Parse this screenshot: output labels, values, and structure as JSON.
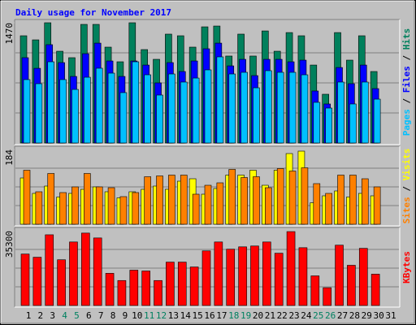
{
  "chart_data": [
    {
      "type": "bar",
      "title": "Daily usage for November 2017",
      "title_color": "#0000ff",
      "legend_separator": " / ",
      "ylim": [
        0,
        1470
      ],
      "yticks": [
        1470
      ],
      "grid_lines": 4,
      "series": [
        {
          "name": "Pages",
          "color": "#00c0ff",
          "values": [
            775,
            725,
            993,
            775,
            655,
            804,
            914,
            854,
            616,
            993,
            834,
            586,
            844,
            745,
            794,
            894,
            1053,
            844,
            864,
            675,
            884,
            864,
            864,
            834,
            497,
            427,
            745,
            477,
            745,
            536,
            null
          ]
        },
        {
          "name": "Files",
          "color": "#0000ff",
          "values": [
            1043,
            913,
            1202,
            983,
            814,
            1092,
            1221,
            1003,
            814,
            1003,
            953,
            735,
            983,
            874,
            1003,
            1152,
            1221,
            943,
            1023,
            824,
            1023,
            1023,
            993,
            1013,
            636,
            477,
            923,
            725,
            953,
            665,
            null
          ]
        },
        {
          "name": "Hits",
          "color": "#00805c",
          "values": [
            1311,
            1261,
            1470,
            1122,
            1043,
            1450,
            1450,
            1172,
            993,
            1470,
            1142,
            1023,
            1331,
            1311,
            1172,
            1420,
            1430,
            1063,
            1331,
            1063,
            1370,
            1122,
            1350,
            1311,
            953,
            596,
            1350,
            1013,
            1311,
            874,
            null
          ]
        }
      ]
    },
    {
      "type": "bar",
      "legend_separator": " / ",
      "ylim": [
        0,
        184
      ],
      "yticks": [
        184
      ],
      "grid_lines": 4,
      "series": [
        {
          "name": "Sites",
          "color": "#ff8000",
          "values": [
            133,
            80,
            125,
            78,
            92,
            125,
            92,
            90,
            68,
            78,
            117,
            119,
            121,
            121,
            74,
            96,
            102,
            135,
            115,
            117,
            90,
            137,
            131,
            139,
            100,
            76,
            121,
            121,
            112,
            92,
            null
          ]
        },
        {
          "name": "Visits",
          "color": "#ffff00",
          "values": [
            114,
            76,
            94,
            67,
            76,
            86,
            92,
            80,
            65,
            80,
            86,
            94,
            86,
            106,
            112,
            74,
            88,
            121,
            121,
            133,
            96,
            133,
            174,
            180,
            53,
            70,
            82,
            67,
            76,
            70,
            null
          ]
        }
      ]
    },
    {
      "type": "bar",
      "ylim": [
        0,
        35300
      ],
      "yticks": [
        35300
      ],
      "grid_lines": 4,
      "categories": [
        "1",
        "2",
        "3",
        "4",
        "5",
        "6",
        "7",
        "8",
        "9",
        "10",
        "11",
        "12",
        "13",
        "14",
        "15",
        "16",
        "17",
        "18",
        "19",
        "20",
        "21",
        "22",
        "23",
        "24",
        "25",
        "26",
        "27",
        "28",
        "29",
        "30",
        "31"
      ],
      "label_colors": [
        "#000000",
        "#000000",
        "#000000",
        "#008060",
        "#008060",
        "#000000",
        "#000000",
        "#000000",
        "#000000",
        "#000000",
        "#008060",
        "#008060",
        "#000000",
        "#000000",
        "#000000",
        "#000000",
        "#000000",
        "#008060",
        "#008060",
        "#000000",
        "#000000",
        "#000000",
        "#000000",
        "#000000",
        "#008060",
        "#008060",
        "#000000",
        "#000000",
        "#000000",
        "#000000",
        "#000000"
      ],
      "series": [
        {
          "name": "KBytes",
          "color": "#ff0000",
          "values": [
            24300,
            22800,
            33400,
            21600,
            30000,
            34200,
            31900,
            15200,
            11800,
            16700,
            16300,
            11800,
            20500,
            20500,
            18200,
            25800,
            30000,
            26600,
            27700,
            28100,
            30000,
            24700,
            34900,
            27300,
            14000,
            8400,
            28500,
            19000,
            27000,
            14800,
            null
          ]
        }
      ]
    }
  ]
}
